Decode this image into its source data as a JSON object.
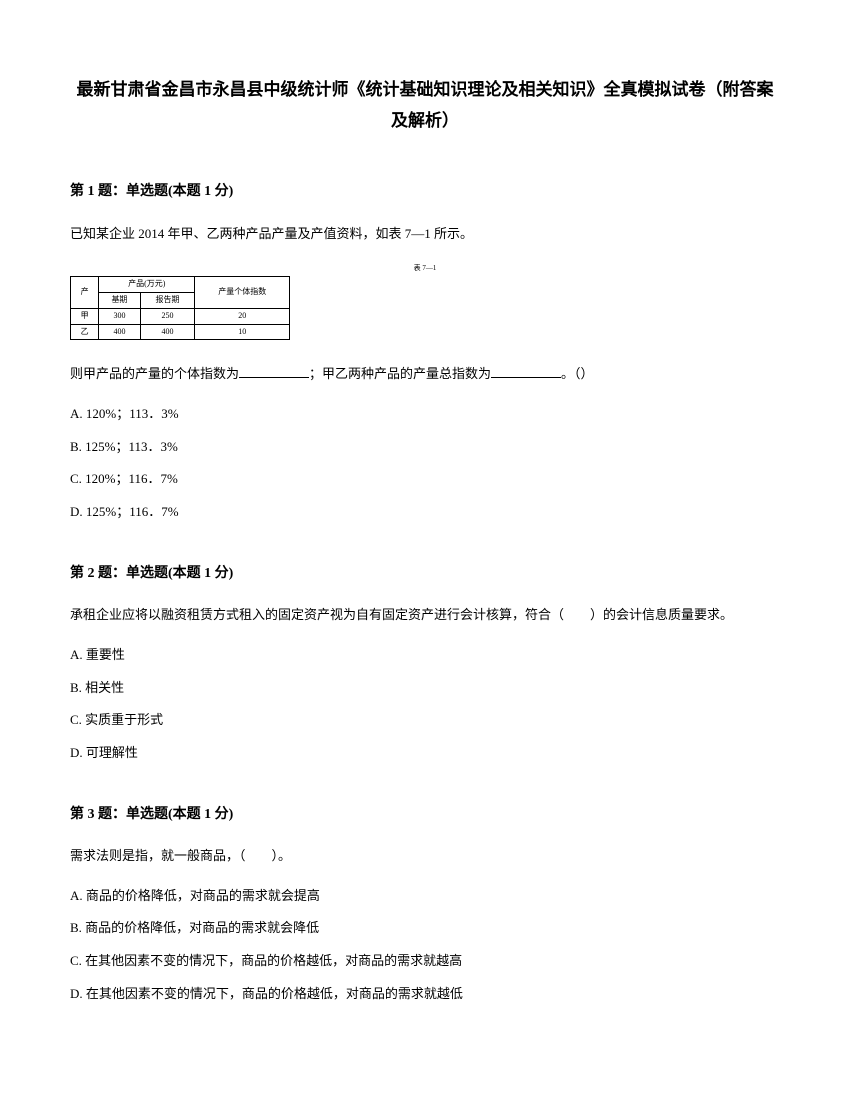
{
  "document": {
    "title": "最新甘肃省金昌市永昌县中级统计师《统计基础知识理论及相关知识》全真模拟试卷（附答案及解析）"
  },
  "questions": [
    {
      "header": "第 1 题：单选题(本题 1 分)",
      "intro": "已知某企业 2014 年甲、乙两种产品产量及产值资料，如表 7—1 所示。",
      "table": {
        "caption": "表 7—1",
        "header_group": "产品(万元)",
        "col_product": "产",
        "col_base": "基期",
        "col_report": "报告期",
        "col_value": "产量个体指数",
        "row1": {
          "product": "甲",
          "base": "300",
          "report": "250",
          "value": "20"
        },
        "row2": {
          "product": "乙",
          "base": "400",
          "report": "400",
          "value": "10"
        }
      },
      "followup": "则甲产品的产量的个体指数为",
      "followup_mid": "；甲乙两种产品的产量总指数为",
      "followup_end": "。（）",
      "options": {
        "a": "A. 120%；113．3%",
        "b": "B. 125%；113．3%",
        "c": "C. 120%；116．7%",
        "d": "D. 125%；116．7%"
      }
    },
    {
      "header": "第 2 题：单选题(本题 1 分)",
      "text": "承租企业应将以融资租赁方式租入的固定资产视为自有固定资产进行会计核算，符合（　　）的会计信息质量要求。",
      "options": {
        "a": "A. 重要性",
        "b": "B. 相关性",
        "c": "C. 实质重于形式",
        "d": "D. 可理解性"
      }
    },
    {
      "header": "第 3 题：单选题(本题 1 分)",
      "text": "需求法则是指，就一般商品，（　　）。",
      "options": {
        "a": "A. 商品的价格降低，对商品的需求就会提高",
        "b": "B. 商品的价格降低，对商品的需求就会降低",
        "c": "C. 在其他因素不变的情况下，商品的价格越低，对商品的需求就越高",
        "d": "D. 在其他因素不变的情况下，商品的价格越低，对商品的需求就越低"
      }
    }
  ]
}
